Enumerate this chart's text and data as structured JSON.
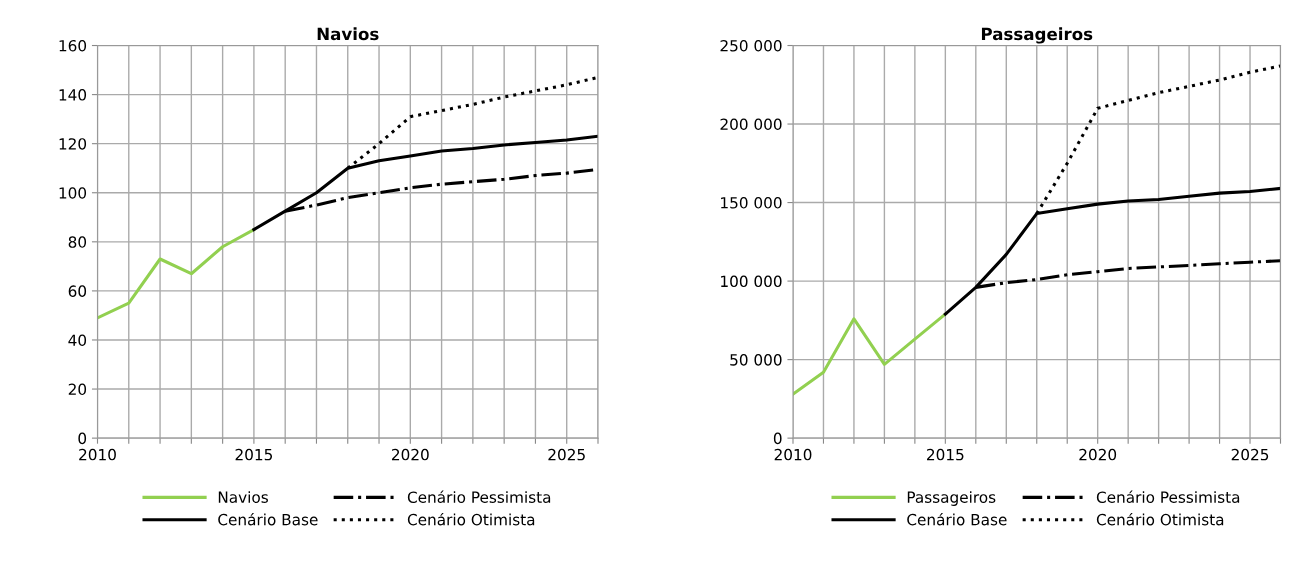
{
  "chart_data": [
    {
      "type": "line",
      "title": "Navios",
      "xlim": [
        2010,
        2026
      ],
      "ylim": [
        0,
        160
      ],
      "xticks": [
        2010,
        {
          "value": 2011,
          "label": null
        },
        {
          "value": 2012,
          "label": null
        },
        {
          "value": 2013,
          "label": null
        },
        {
          "value": 2014,
          "label": null
        },
        2015,
        {
          "value": 2016,
          "label": null
        },
        {
          "value": 2017,
          "label": null
        },
        {
          "value": 2018,
          "label": null
        },
        {
          "value": 2019,
          "label": null
        },
        2020,
        {
          "value": 2021,
          "label": null
        },
        {
          "value": 2022,
          "label": null
        },
        {
          "value": 2023,
          "label": null
        },
        {
          "value": 2024,
          "label": null
        },
        2025,
        {
          "value": 2026,
          "label": null
        }
      ],
      "yticks": [
        0,
        20,
        40,
        60,
        80,
        100,
        120,
        140,
        160
      ],
      "grid": true,
      "legend": "bottom",
      "series": [
        {
          "name": "Navios",
          "color": "#92d050",
          "line_style": "solid",
          "x": [
            2010,
            2011,
            2012,
            2013,
            2014,
            2015
          ],
          "values": [
            49,
            55,
            73,
            67,
            78,
            85
          ]
        },
        {
          "name": "Cenário Base",
          "color": "#000000",
          "line_style": "solid",
          "x": [
            2015,
            2016,
            2017,
            2018,
            2019,
            2020,
            2021,
            2022,
            2023,
            2024,
            2025,
            2026
          ],
          "values": [
            85,
            92.5,
            100,
            110,
            113,
            115,
            117,
            118,
            119.5,
            120.5,
            121.5,
            123
          ]
        },
        {
          "name": "Cenário Pessimista",
          "color": "#000000",
          "line_style": "dashdot",
          "x": [
            2016,
            2017,
            2018,
            2019,
            2020,
            2021,
            2022,
            2023,
            2024,
            2025,
            2026
          ],
          "values": [
            92.5,
            95,
            98,
            100,
            102,
            103.5,
            104.5,
            105.5,
            107,
            108,
            109.5
          ]
        },
        {
          "name": "Cenário Otimista",
          "color": "#000000",
          "line_style": "dotted",
          "x": [
            2018,
            2019,
            2020,
            2021,
            2022,
            2023,
            2024,
            2025,
            2026
          ],
          "values": [
            110,
            120,
            131,
            133.5,
            136,
            139,
            141.5,
            144,
            147
          ]
        }
      ]
    },
    {
      "type": "line",
      "title": "Passageiros",
      "xlim": [
        2010,
        2026
      ],
      "ylim": [
        0,
        250000
      ],
      "xticks": [
        2010,
        {
          "value": 2011,
          "label": null
        },
        {
          "value": 2012,
          "label": null
        },
        {
          "value": 2013,
          "label": null
        },
        {
          "value": 2014,
          "label": null
        },
        2015,
        {
          "value": 2016,
          "label": null
        },
        {
          "value": 2017,
          "label": null
        },
        {
          "value": 2018,
          "label": null
        },
        {
          "value": 2019,
          "label": null
        },
        2020,
        {
          "value": 2021,
          "label": null
        },
        {
          "value": 2022,
          "label": null
        },
        {
          "value": 2023,
          "label": null
        },
        {
          "value": 2024,
          "label": null
        },
        2025,
        {
          "value": 2026,
          "label": null
        }
      ],
      "yticks": [
        0,
        {
          "value": 50000,
          "label": "50 000"
        },
        {
          "value": 100000,
          "label": "100 000"
        },
        {
          "value": 150000,
          "label": "150 000"
        },
        {
          "value": 200000,
          "label": "200 000"
        },
        {
          "value": 250000,
          "label": "250 000"
        }
      ],
      "grid": true,
      "legend": "bottom",
      "series": [
        {
          "name": "Passageiros",
          "color": "#92d050",
          "line_style": "solid",
          "x": [
            2010,
            2011,
            2012,
            2013,
            2014,
            2015
          ],
          "values": [
            28000,
            42000,
            76000,
            47000,
            63000,
            79000
          ]
        },
        {
          "name": "Cenário Base",
          "color": "#000000",
          "line_style": "solid",
          "x": [
            2015,
            2016,
            2017,
            2018,
            2019,
            2020,
            2021,
            2022,
            2023,
            2024,
            2025,
            2026
          ],
          "values": [
            79000,
            96000,
            117000,
            143000,
            146000,
            149000,
            151000,
            152000,
            154000,
            156000,
            157000,
            159000
          ]
        },
        {
          "name": "Cenário Pessimista",
          "color": "#000000",
          "line_style": "dashdot",
          "x": [
            2016,
            2017,
            2018,
            2019,
            2020,
            2021,
            2022,
            2023,
            2024,
            2025,
            2026
          ],
          "values": [
            96000,
            99000,
            101000,
            104000,
            106000,
            108000,
            109000,
            110000,
            111000,
            112000,
            113000
          ]
        },
        {
          "name": "Cenário Otimista",
          "color": "#000000",
          "line_style": "dotted",
          "x": [
            2018,
            2019,
            2020,
            2021,
            2022,
            2023,
            2024,
            2025,
            2026
          ],
          "values": [
            143000,
            175000,
            210000,
            215000,
            220000,
            224000,
            228000,
            233000,
            237000
          ]
        }
      ]
    }
  ]
}
